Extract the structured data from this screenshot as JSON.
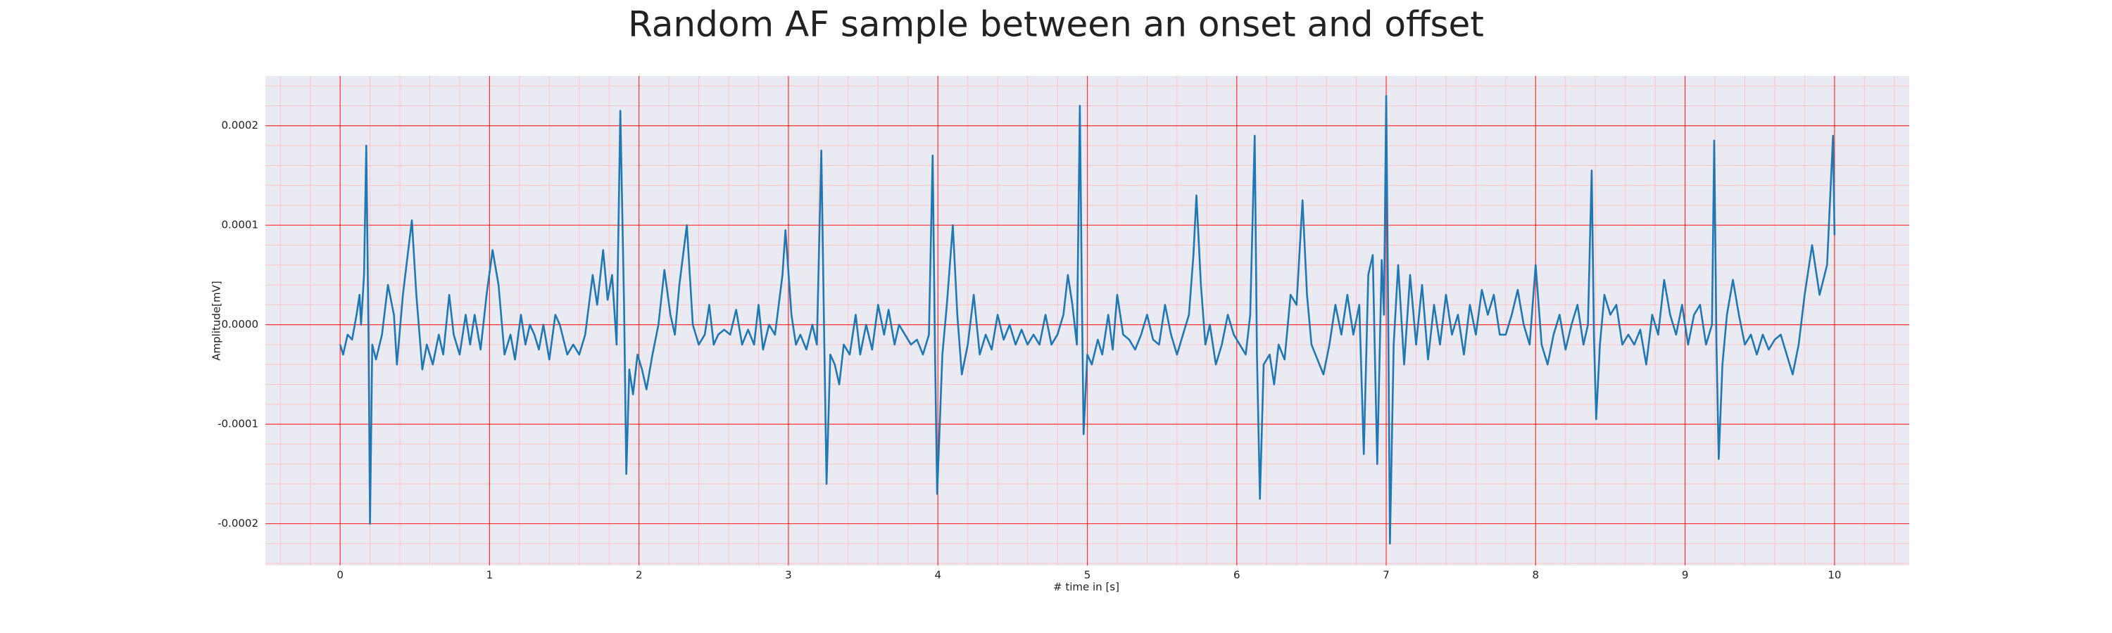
{
  "chart_data": {
    "type": "line",
    "title": "Random AF sample between an onset and offset",
    "xlabel": "# time in [s]",
    "ylabel": "Amplitude[mV]",
    "xlim": [
      -0.5,
      10.5
    ],
    "ylim": [
      -0.000242,
      0.00025
    ],
    "xticks": [
      0,
      1,
      2,
      3,
      4,
      5,
      6,
      7,
      8,
      9,
      10
    ],
    "yticks": [
      {
        "value": -0.0002,
        "label": "-0.0002"
      },
      {
        "value": -0.0001,
        "label": "-0.0001"
      },
      {
        "value": 0,
        "label": "0.0000"
      },
      {
        "value": 0.0001,
        "label": "0.0001"
      },
      {
        "value": 0.0002,
        "label": "0.0002"
      }
    ],
    "grid": true,
    "grid_color": "#ff0000",
    "minor_grid_color": "#ffc4c4",
    "minor_divisions": 5,
    "background": "#eaeaf2",
    "series": [
      {
        "color": "#1f77b4",
        "x": [
          0,
          0.02,
          0.05,
          0.08,
          0.11,
          0.13,
          0.14,
          0.16,
          0.175,
          0.19,
          0.2,
          0.215,
          0.24,
          0.28,
          0.32,
          0.36,
          0.38,
          0.42,
          0.46,
          0.48,
          0.51,
          0.55,
          0.58,
          0.62,
          0.66,
          0.69,
          0.73,
          0.76,
          0.8,
          0.84,
          0.87,
          0.9,
          0.94,
          0.98,
          1.02,
          1.06,
          1.1,
          1.14,
          1.17,
          1.21,
          1.24,
          1.27,
          1.3,
          1.33,
          1.36,
          1.4,
          1.44,
          1.47,
          1.52,
          1.56,
          1.6,
          1.64,
          1.69,
          1.72,
          1.76,
          1.79,
          1.82,
          1.85,
          1.875,
          1.9,
          1.915,
          1.935,
          1.96,
          1.99,
          2.02,
          2.05,
          2.09,
          2.13,
          2.17,
          2.21,
          2.24,
          2.27,
          2.32,
          2.36,
          2.4,
          2.44,
          2.47,
          2.5,
          2.53,
          2.57,
          2.61,
          2.65,
          2.69,
          2.73,
          2.77,
          2.8,
          2.83,
          2.87,
          2.91,
          2.96,
          2.98,
          3.02,
          3.05,
          3.08,
          3.12,
          3.16,
          3.19,
          3.22,
          3.24,
          3.255,
          3.28,
          3.31,
          3.34,
          3.37,
          3.41,
          3.45,
          3.48,
          3.52,
          3.56,
          3.6,
          3.64,
          3.67,
          3.71,
          3.74,
          3.78,
          3.82,
          3.86,
          3.9,
          3.94,
          3.965,
          3.98,
          3.995,
          4.03,
          4.06,
          4.1,
          4.13,
          4.16,
          4.2,
          4.24,
          4.28,
          4.32,
          4.36,
          4.4,
          4.44,
          4.48,
          4.52,
          4.56,
          4.6,
          4.64,
          4.68,
          4.72,
          4.76,
          4.8,
          4.84,
          4.87,
          4.9,
          4.93,
          4.95,
          4.965,
          4.975,
          5,
          5.03,
          5.07,
          5.1,
          5.14,
          5.17,
          5.2,
          5.24,
          5.28,
          5.32,
          5.36,
          5.4,
          5.44,
          5.48,
          5.52,
          5.56,
          5.6,
          5.64,
          5.68,
          5.71,
          5.73,
          5.76,
          5.79,
          5.82,
          5.86,
          5.9,
          5.94,
          5.98,
          6.02,
          6.06,
          6.09,
          6.12,
          6.135,
          6.155,
          6.18,
          6.22,
          6.25,
          6.28,
          6.32,
          6.36,
          6.4,
          6.44,
          6.47,
          6.5,
          6.54,
          6.58,
          6.62,
          6.66,
          6.7,
          6.74,
          6.78,
          6.82,
          6.85,
          6.88,
          6.91,
          6.94,
          6.97,
          6.985,
          7,
          7.015,
          7.025,
          7.05,
          7.08,
          7.12,
          7.16,
          7.2,
          7.24,
          7.28,
          7.32,
          7.36,
          7.4,
          7.44,
          7.48,
          7.52,
          7.56,
          7.6,
          7.64,
          7.68,
          7.72,
          7.76,
          7.8,
          7.84,
          7.88,
          7.92,
          7.96,
          8,
          8.04,
          8.08,
          8.12,
          8.16,
          8.2,
          8.24,
          8.28,
          8.32,
          8.35,
          8.375,
          8.39,
          8.405,
          8.43,
          8.46,
          8.5,
          8.54,
          8.58,
          8.62,
          8.66,
          8.7,
          8.74,
          8.78,
          8.82,
          8.86,
          8.9,
          8.94,
          8.98,
          9.02,
          9.06,
          9.1,
          9.14,
          9.18,
          9.195,
          9.21,
          9.225,
          9.25,
          9.28,
          9.32,
          9.36,
          9.4,
          9.44,
          9.48,
          9.52,
          9.56,
          9.6,
          9.64,
          9.68,
          9.72,
          9.76,
          9.8,
          9.85,
          9.9,
          9.95,
          9.99,
          10
        ],
        "values": [
          -2e-05,
          -3e-05,
          -1e-05,
          -1.5e-05,
          1e-05,
          3e-05,
          0,
          5e-05,
          0.00018,
          -1e-05,
          -0.0002,
          -2e-05,
          -3.5e-05,
          -1e-05,
          4e-05,
          1e-05,
          -4e-05,
          3e-05,
          8e-05,
          0.000105,
          3e-05,
          -4.5e-05,
          -2e-05,
          -4e-05,
          -1e-05,
          -3e-05,
          3e-05,
          -1e-05,
          -3e-05,
          1e-05,
          -2e-05,
          1e-05,
          -2.5e-05,
          3e-05,
          7.5e-05,
          4e-05,
          -3e-05,
          -1e-05,
          -3.5e-05,
          1e-05,
          -2e-05,
          0,
          -1e-05,
          -2.5e-05,
          0,
          -3.5e-05,
          1e-05,
          0,
          -3e-05,
          -2e-05,
          -3e-05,
          -1e-05,
          5e-05,
          2e-05,
          7.5e-05,
          2.5e-05,
          5e-05,
          -2e-05,
          0.000215,
          2e-05,
          -0.00015,
          -4.5e-05,
          -7e-05,
          -3e-05,
          -4.5e-05,
          -6.5e-05,
          -3e-05,
          0,
          5.5e-05,
          1e-05,
          -1e-05,
          4e-05,
          0.0001,
          0,
          -2e-05,
          -1e-05,
          2e-05,
          -2e-05,
          -1e-05,
          -5e-06,
          -1e-05,
          1.5e-05,
          -2e-05,
          -5e-06,
          -2e-05,
          2e-05,
          -2.5e-05,
          0,
          -1e-05,
          5e-05,
          9.5e-05,
          1e-05,
          -2e-05,
          -1e-05,
          -2.5e-05,
          0,
          -2e-05,
          0.000175,
          -2e-05,
          -0.00016,
          -3e-05,
          -4e-05,
          -6e-05,
          -2e-05,
          -3e-05,
          1e-05,
          -3e-05,
          0,
          -2.5e-05,
          2e-05,
          -1e-05,
          1.5e-05,
          -2e-05,
          0,
          -1e-05,
          -2e-05,
          -1.5e-05,
          -3e-05,
          -1e-05,
          0.00017,
          -2e-05,
          -0.00017,
          -3e-05,
          2e-05,
          0.0001,
          1e-05,
          -5e-05,
          -2e-05,
          3e-05,
          -3e-05,
          -1e-05,
          -2.5e-05,
          1e-05,
          -1.5e-05,
          0,
          -2e-05,
          -5e-06,
          -2e-05,
          -1e-05,
          -2e-05,
          1e-05,
          -2e-05,
          -1e-05,
          1e-05,
          5e-05,
          2e-05,
          -2e-05,
          0.00022,
          1e-05,
          -0.00011,
          -3e-05,
          -4e-05,
          -1.5e-05,
          -3e-05,
          1e-05,
          -2.5e-05,
          3e-05,
          -1e-05,
          -1.5e-05,
          -2.5e-05,
          -1e-05,
          1e-05,
          -1.5e-05,
          -2e-05,
          2e-05,
          -1e-05,
          -3e-05,
          -1e-05,
          1e-05,
          7e-05,
          0.00013,
          4e-05,
          -2e-05,
          0,
          -4e-05,
          -2e-05,
          1e-05,
          -1e-05,
          -2e-05,
          -3e-05,
          1e-05,
          0.00019,
          -3e-05,
          -0.000175,
          -4e-05,
          -3e-05,
          -6e-05,
          -2e-05,
          -3.5e-05,
          3e-05,
          2e-05,
          0.000125,
          3e-05,
          -2e-05,
          -3.5e-05,
          -5e-05,
          -2e-05,
          2e-05,
          -1e-05,
          3e-05,
          -1e-05,
          2e-05,
          -0.00013,
          5e-05,
          7e-05,
          -0.00014,
          6.5e-05,
          1e-05,
          0.00023,
          -2e-05,
          -0.00022,
          -2e-05,
          6e-05,
          -4e-05,
          5e-05,
          -2e-05,
          4e-05,
          -3.5e-05,
          2e-05,
          -2e-05,
          3e-05,
          -1e-05,
          1e-05,
          -3e-05,
          2e-05,
          -1e-05,
          3.5e-05,
          1e-05,
          3e-05,
          -1e-05,
          -1e-05,
          1e-05,
          3.5e-05,
          0,
          -2e-05,
          6e-05,
          -2e-05,
          -4e-05,
          -1e-05,
          1e-05,
          -2.5e-05,
          0,
          2e-05,
          -2e-05,
          0,
          0.000155,
          -1e-05,
          -9.5e-05,
          -2e-05,
          3e-05,
          1e-05,
          2e-05,
          -2e-05,
          -1e-05,
          -2e-05,
          -5e-06,
          -4e-05,
          1e-05,
          -1e-05,
          4.5e-05,
          1e-05,
          -1e-05,
          2e-05,
          -2e-05,
          1e-05,
          2e-05,
          -2e-05,
          0,
          0.000185,
          -2e-05,
          -0.000135,
          -4e-05,
          1e-05,
          4.5e-05,
          1e-05,
          -2e-05,
          -1e-05,
          -3e-05,
          -1e-05,
          -2.5e-05,
          -1.5e-05,
          -1e-05,
          -3e-05,
          -5e-05,
          -2e-05,
          3e-05,
          8e-05,
          3e-05,
          6e-05,
          0.00019,
          9e-05
        ]
      }
    ]
  }
}
